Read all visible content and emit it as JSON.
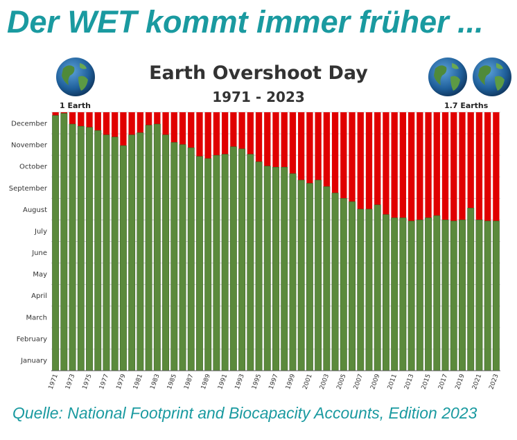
{
  "headline": "Der WET kommt immer früher ...",
  "chart_title": "Earth Overshoot Day",
  "chart_subtitle": "1971 - 2023",
  "left_badge": "1 Earth",
  "right_badge": "1.7 Earths",
  "source": "Quelle: National Footprint and Biocapacity Accounts, Edition 2023",
  "colors": {
    "accent": "#1a9aa0",
    "green": "#5b8a3c",
    "red": "#e00000"
  },
  "chart_data": {
    "type": "bar",
    "title": "Earth Overshoot Day",
    "subtitle": "1971 - 2023",
    "xlabel": "",
    "ylabel": "",
    "y_unit": "months (0 = start of January, 12 = end of December)",
    "ylim": [
      0,
      12
    ],
    "y_tick_labels": [
      "January",
      "February",
      "March",
      "April",
      "May",
      "June",
      "July",
      "August",
      "September",
      "October",
      "November",
      "December"
    ],
    "x_tick_labels": [
      "1971",
      "1973",
      "1975",
      "1977",
      "1979",
      "1981",
      "1983",
      "1985",
      "1987",
      "1989",
      "1991",
      "1993",
      "1995",
      "1997",
      "1999",
      "2001",
      "2003",
      "2005",
      "2007",
      "2009",
      "2011",
      "2013",
      "2015",
      "2017",
      "2019",
      "2021",
      "2023"
    ],
    "categories": [
      "1971",
      "1972",
      "1973",
      "1974",
      "1975",
      "1976",
      "1977",
      "1978",
      "1979",
      "1980",
      "1981",
      "1982",
      "1983",
      "1984",
      "1985",
      "1986",
      "1987",
      "1988",
      "1989",
      "1990",
      "1991",
      "1992",
      "1993",
      "1994",
      "1995",
      "1996",
      "1997",
      "1998",
      "1999",
      "2000",
      "2001",
      "2002",
      "2003",
      "2004",
      "2005",
      "2006",
      "2007",
      "2008",
      "2009",
      "2010",
      "2011",
      "2012",
      "2013",
      "2014",
      "2015",
      "2016",
      "2017",
      "2018",
      "2019",
      "2020",
      "2021",
      "2022",
      "2023"
    ],
    "series": [
      {
        "values": [
          11.85,
          11.95,
          11.45,
          11.35,
          11.3,
          11.15,
          10.95,
          10.85,
          10.45,
          10.95,
          11.05,
          11.4,
          11.45,
          10.95,
          10.6,
          10.5,
          10.35,
          9.95,
          9.85,
          10.0,
          10.05,
          10.4,
          10.3,
          10.05,
          9.7,
          9.5,
          9.45,
          9.45,
          9.15,
          8.85,
          8.7,
          8.85,
          8.55,
          8.25,
          8.0,
          7.85,
          7.5,
          7.5,
          7.7,
          7.25,
          7.1,
          7.1,
          6.95,
          7.0,
          7.1,
          7.2,
          7.0,
          6.95,
          7.0,
          7.55,
          7.0,
          6.95,
          6.95
        ]
      }
    ],
    "grid": true,
    "legend": "none"
  }
}
